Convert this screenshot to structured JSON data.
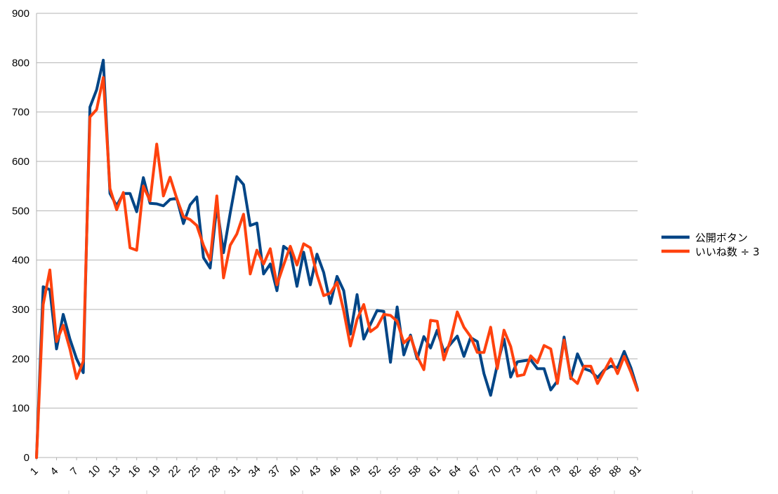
{
  "chart_data": {
    "type": "line",
    "title": "",
    "xlabel": "",
    "ylabel": "",
    "ylim": [
      0,
      900
    ],
    "yticks": [
      0,
      100,
      200,
      300,
      400,
      500,
      600,
      700,
      800,
      900
    ],
    "xrange": [
      1,
      91
    ],
    "xtick_labels": [
      "1",
      "4",
      "7",
      "10",
      "13",
      "16",
      "19",
      "22",
      "25",
      "28",
      "31",
      "34",
      "37",
      "40",
      "43",
      "46",
      "49",
      "52",
      "55",
      "58",
      "61",
      "64",
      "67",
      "70",
      "73",
      "76",
      "79",
      "82",
      "85",
      "88",
      "91"
    ],
    "grid": true,
    "legend_position": "right",
    "series": [
      {
        "name": "公開ボタン",
        "color": "#004586",
        "values": [
          0,
          346,
          340,
          220,
          290,
          240,
          200,
          172,
          710,
          745,
          805,
          535,
          510,
          535,
          535,
          498,
          567,
          515,
          514,
          510,
          523,
          525,
          474,
          512,
          528,
          405,
          384,
          510,
          415,
          495,
          569,
          553,
          470,
          475,
          372,
          392,
          338,
          428,
          418,
          347,
          416,
          350,
          412,
          375,
          312,
          367,
          338,
          250,
          330,
          240,
          270,
          298,
          296,
          193,
          305,
          208,
          248,
          200,
          245,
          222,
          258,
          214,
          230,
          246,
          205,
          243,
          235,
          170,
          126,
          188,
          240,
          163,
          194,
          196,
          198,
          180,
          180,
          137,
          155,
          244,
          160,
          210,
          180,
          175,
          162,
          177,
          185,
          182,
          215,
          182,
          138
        ]
      },
      {
        "name": "いいね数 ÷ 3",
        "color": "#ff420e",
        "values": [
          0,
          310,
          380,
          235,
          268,
          220,
          160,
          195,
          690,
          705,
          770,
          545,
          502,
          537,
          425,
          420,
          550,
          520,
          635,
          530,
          568,
          525,
          488,
          482,
          470,
          430,
          400,
          530,
          364,
          430,
          453,
          493,
          372,
          420,
          392,
          423,
          350,
          390,
          428,
          390,
          433,
          425,
          370,
          328,
          333,
          355,
          297,
          226,
          280,
          310,
          255,
          265,
          290,
          288,
          276,
          232,
          245,
          205,
          178,
          278,
          276,
          198,
          238,
          295,
          264,
          245,
          213,
          213,
          264,
          180,
          258,
          225,
          165,
          168,
          206,
          192,
          227,
          220,
          150,
          238,
          162,
          150,
          185,
          185,
          150,
          175,
          200,
          170,
          205,
          173,
          136
        ]
      }
    ]
  }
}
